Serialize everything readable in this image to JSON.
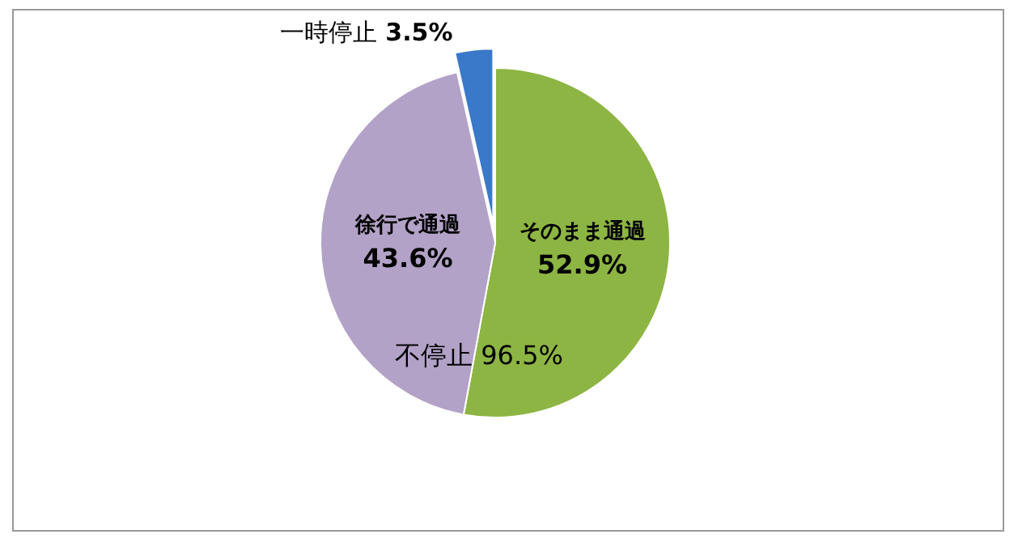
{
  "chart_data": {
    "type": "pie",
    "categories": [
      "そのまま通過",
      "徐行で通過",
      "一時停止"
    ],
    "values": [
      52.9,
      43.6,
      3.5
    ],
    "colors": [
      "#8db543",
      "#b3a2c7",
      "#3a78c9"
    ],
    "value_labels": [
      "52.9%",
      "43.6%",
      "3.5%"
    ],
    "annotations": [
      "不停止 96.5%"
    ]
  }
}
